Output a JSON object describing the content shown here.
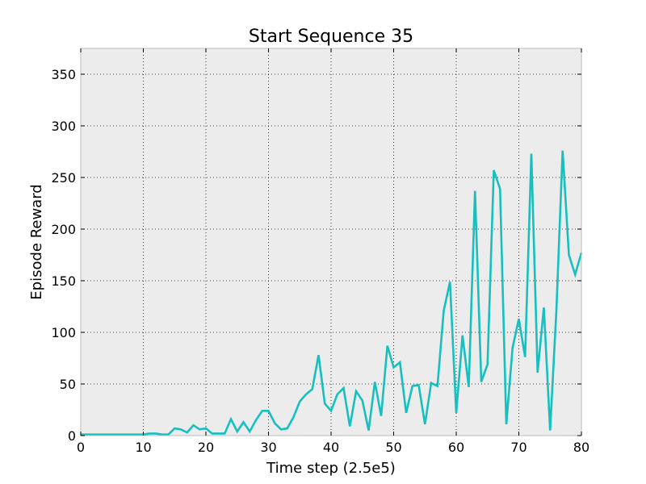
{
  "chart_data": {
    "type": "line",
    "title": "Start Sequence 35",
    "xlabel": "Time step (2.5e5)",
    "ylabel": "Episode Reward",
    "xlim": [
      0,
      80
    ],
    "ylim": [
      0,
      375
    ],
    "xticks": [
      0,
      10,
      20,
      30,
      40,
      50,
      60,
      70,
      80
    ],
    "yticks": [
      0,
      50,
      100,
      150,
      200,
      250,
      300,
      350
    ],
    "grid": true,
    "background_color": "#ececec",
    "line_color": "#17bfbf",
    "series": [
      {
        "x": [
          0,
          1,
          2,
          3,
          4,
          5,
          6,
          7,
          8,
          9,
          10,
          11,
          12,
          13,
          14,
          15,
          16,
          17,
          18,
          19,
          20,
          21,
          22,
          23,
          24,
          25,
          26,
          27,
          28,
          29,
          30,
          31,
          32,
          33,
          34,
          35,
          36,
          37,
          38,
          39,
          40,
          41,
          42,
          43,
          44,
          45,
          46,
          47,
          48,
          49,
          50,
          51,
          52,
          53,
          54,
          55,
          56,
          57,
          58,
          59,
          60,
          61,
          62,
          63,
          64,
          65,
          66,
          67,
          68,
          69,
          70,
          71,
          72,
          73,
          74,
          75,
          76,
          77,
          78,
          79,
          80
        ],
        "values": [
          1,
          1,
          1,
          1,
          1,
          1,
          1,
          1,
          1,
          1,
          1,
          2,
          2,
          1,
          1,
          7,
          6,
          3,
          10,
          6,
          7,
          2,
          2,
          2,
          16,
          4,
          13,
          4,
          15,
          24,
          24,
          12,
          6,
          7,
          18,
          33,
          40,
          45,
          78,
          31,
          24,
          40,
          46,
          9,
          43,
          34,
          5,
          52,
          19,
          87,
          66,
          71,
          22,
          48,
          49,
          11,
          51,
          48,
          121,
          149,
          22,
          97,
          47,
          237,
          52,
          69,
          257,
          239,
          11,
          85,
          113,
          76,
          273,
          61,
          124,
          5,
          121,
          276,
          175,
          156,
          177
        ]
      }
    ]
  }
}
